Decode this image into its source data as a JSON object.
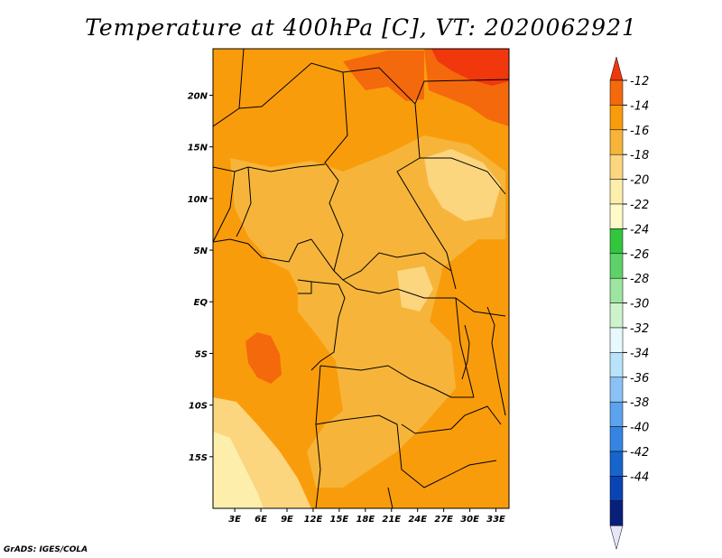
{
  "title": "Temperature at 400hPa [C], VT: 2020062921",
  "credit": "GrADS: IGES/COLA",
  "map": {
    "lon_ticks": [
      "3E",
      "6E",
      "9E",
      "12E",
      "15E",
      "18E",
      "21E",
      "24E",
      "27E",
      "30E",
      "33E"
    ],
    "lat_ticks": [
      "20N",
      "15N",
      "10N",
      "5N",
      "EQ",
      "5S",
      "10S",
      "15S"
    ],
    "lon_range": [
      0.5,
      34.5
    ],
    "lat_range": [
      -20,
      24.5
    ],
    "fill_colors": {
      "warm_region": "#f99c0c",
      "mid_region": "#f6b53a",
      "cool_region": "#fcd57f",
      "coolest_region": "#fdeeac",
      "hot_region": "#f4690c",
      "hottest_region": "#f0380c",
      "border_color": "#000000"
    }
  },
  "colorbar": {
    "labels": [
      "-12",
      "-14",
      "-16",
      "-18",
      "-20",
      "-22",
      "-24",
      "-26",
      "-28",
      "-30",
      "-32",
      "-34",
      "-36",
      "-38",
      "-40",
      "-42",
      "-44"
    ],
    "colors": [
      "#f4690c",
      "#f99c0c",
      "#f6b53a",
      "#fcd57f",
      "#fdeeac",
      "#fffac8",
      "#31c63b",
      "#5fd16a",
      "#9ee59f",
      "#cdf3cd",
      "#e8f9fe",
      "#b9e2fb",
      "#8ac2f5",
      "#5ba3ec",
      "#3584e2",
      "#1764cd",
      "#0a43b4",
      "#09207b"
    ],
    "top_arrow_color": "#f0380c",
    "bottom_arrow_color": "#e6e6fa"
  }
}
